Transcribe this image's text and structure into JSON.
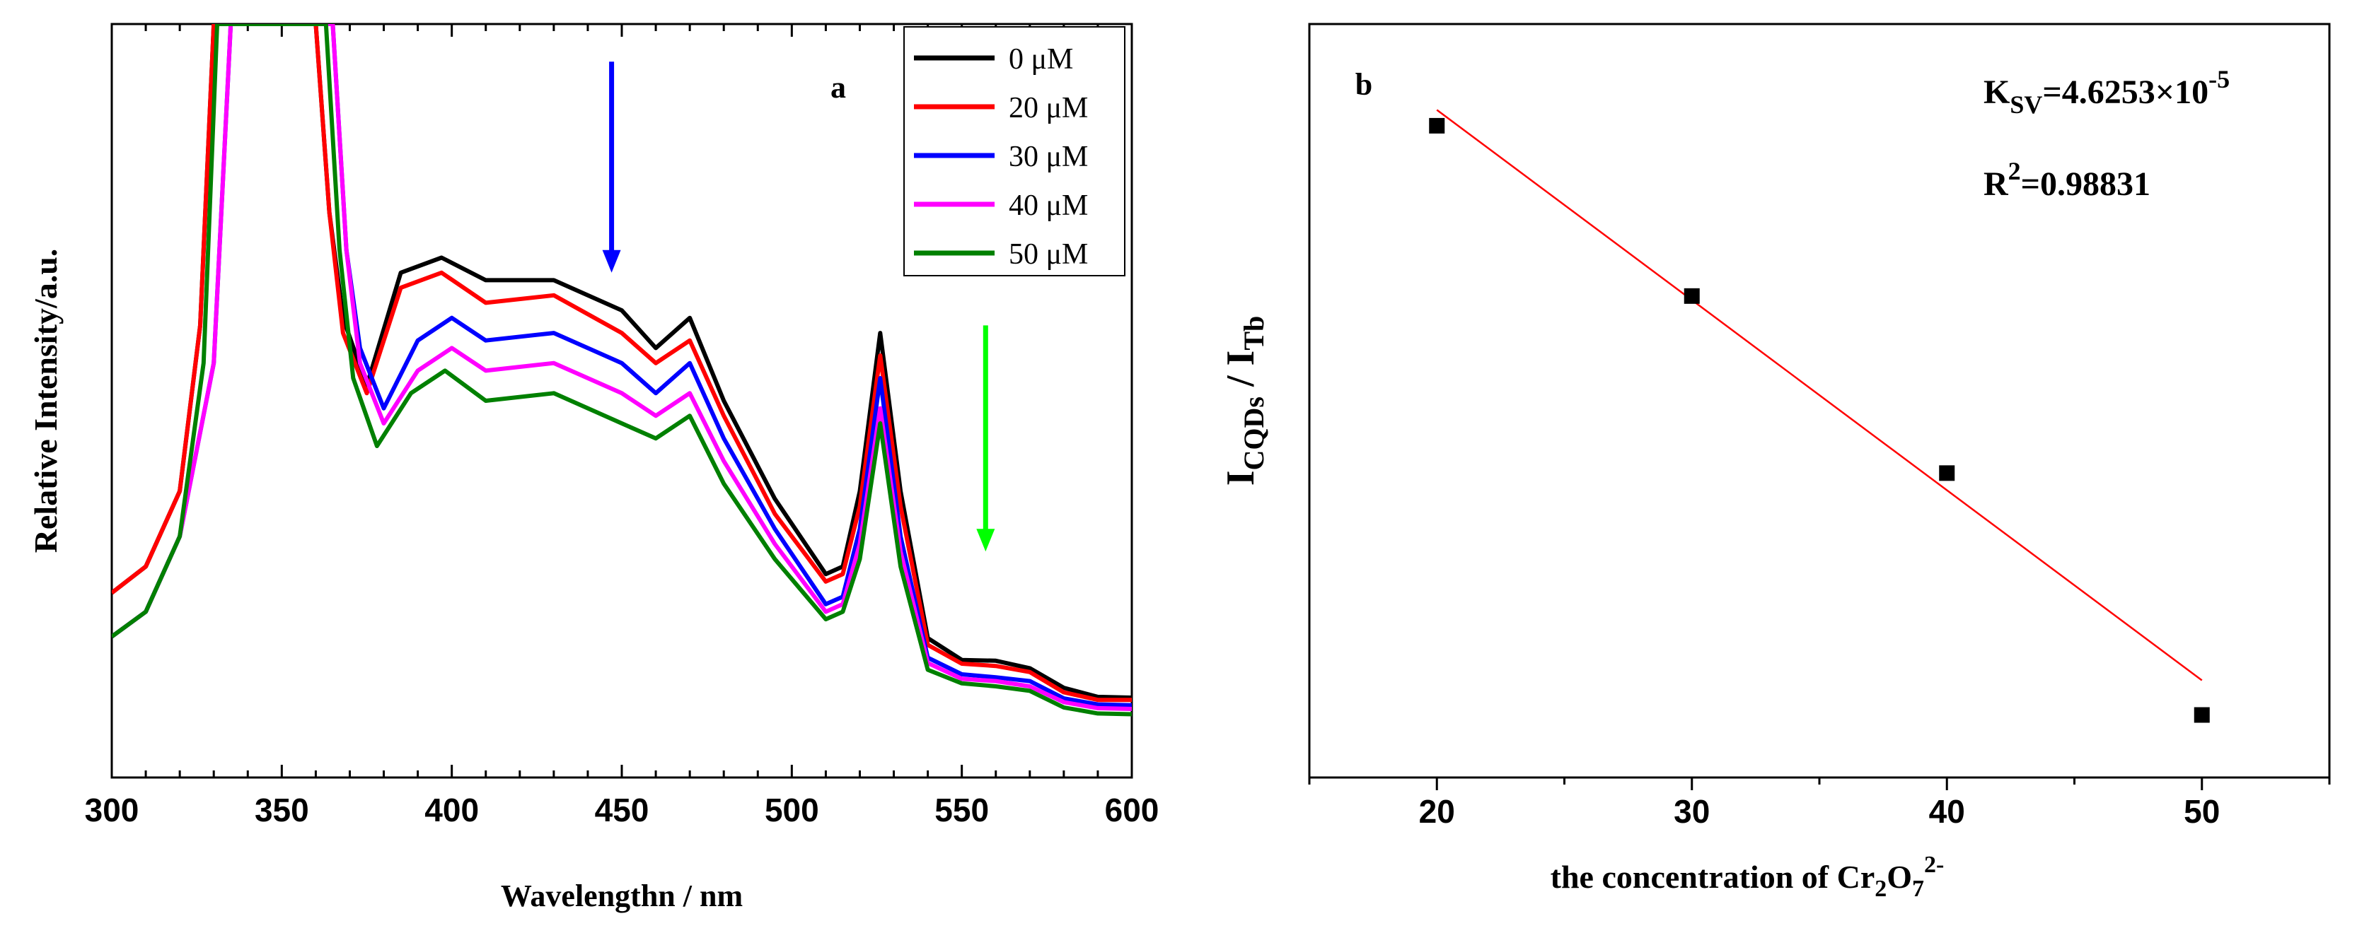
{
  "chart_data": [
    {
      "panel": "a",
      "type": "line",
      "xlabel": "Wavelengthn / nm",
      "ylabel": "Relative Intensity/a.u.",
      "xlim": [
        300,
        600
      ],
      "ylim": [
        0,
        100
      ],
      "xticks": [
        300,
        350,
        400,
        450,
        500,
        550,
        600
      ],
      "yticks_visible": false,
      "legend": {
        "placement": "top-right",
        "entries": [
          "0 μM",
          "20 μM",
          "30 μM",
          "40 μM",
          "50 μM"
        ]
      },
      "series": [
        {
          "name": "0 μM",
          "color": "#000000",
          "x": [
            300,
            310,
            320,
            326,
            330,
            360,
            364,
            368,
            375,
            385,
            397,
            410,
            430,
            450,
            460,
            470,
            480,
            495,
            510,
            515,
            520,
            526,
            532,
            540,
            550,
            560,
            570,
            580,
            590,
            600
          ],
          "y": [
            24.5,
            28,
            38,
            60,
            100,
            100,
            75,
            61,
            52,
            67,
            69,
            66,
            66,
            62,
            57,
            61,
            50,
            37,
            27,
            28,
            38,
            59,
            38,
            18.5,
            15.6,
            15.5,
            14.5,
            11.9,
            10.7,
            10.6
          ]
        },
        {
          "name": "20 μM",
          "color": "#ff0000",
          "x": [
            300,
            310,
            320,
            326,
            330,
            360,
            364,
            368,
            375,
            385,
            397,
            410,
            430,
            450,
            460,
            470,
            480,
            495,
            510,
            515,
            520,
            526,
            532,
            540,
            550,
            560,
            570,
            580,
            590,
            600
          ],
          "y": [
            24.5,
            28,
            38,
            60,
            100,
            100,
            75,
            59,
            51,
            65,
            67,
            63,
            64,
            59,
            55,
            58,
            48,
            35,
            26,
            27,
            36,
            56,
            36,
            17.6,
            15.1,
            14.8,
            14,
            11.3,
            10.3,
            10.3
          ]
        },
        {
          "name": "30 μM",
          "color": "#0000ff",
          "x": [
            300,
            310,
            320,
            330,
            335,
            365,
            369,
            373,
            380,
            390,
            400,
            410,
            430,
            450,
            460,
            470,
            480,
            495,
            510,
            515,
            520,
            526,
            532,
            540,
            550,
            560,
            570,
            580,
            590,
            600
          ],
          "y": [
            18.7,
            22,
            32,
            55,
            100,
            100,
            70,
            57,
            49,
            58,
            61,
            58,
            59,
            55,
            51,
            55,
            45,
            33,
            23,
            24,
            33,
            53,
            32,
            15.9,
            13.7,
            13.3,
            12.8,
            10.5,
            9.7,
            9.6
          ]
        },
        {
          "name": "40 μM",
          "color": "#ff00ff",
          "x": [
            300,
            310,
            320,
            330,
            335,
            365,
            369,
            373,
            380,
            390,
            400,
            410,
            430,
            450,
            460,
            470,
            480,
            495,
            510,
            515,
            520,
            526,
            532,
            540,
            550,
            560,
            570,
            580,
            590,
            600
          ],
          "y": [
            18.7,
            22,
            32,
            55,
            100,
            100,
            70,
            55,
            47,
            54,
            57,
            54,
            55,
            51,
            48,
            51,
            42,
            31,
            22,
            23,
            31,
            49,
            30,
            15.2,
            13.1,
            12.8,
            12.1,
            10,
            9.2,
            9.1
          ]
        },
        {
          "name": "50 μM",
          "color": "#008000",
          "x": [
            300,
            310,
            320,
            327,
            331,
            363,
            367,
            371,
            378,
            388,
            398,
            410,
            430,
            450,
            460,
            470,
            480,
            495,
            510,
            515,
            520,
            526,
            532,
            540,
            550,
            560,
            570,
            580,
            590,
            600
          ],
          "y": [
            18.7,
            22,
            32,
            55,
            100,
            100,
            70,
            53,
            44,
            51,
            54,
            50,
            51,
            47,
            45,
            48,
            39,
            29,
            21,
            22,
            29,
            47,
            28,
            14.3,
            12.5,
            12.1,
            11.5,
            9.3,
            8.5,
            8.4
          ]
        }
      ],
      "annotations": [
        {
          "label": "a"
        },
        {
          "type": "arrow",
          "direction": "down",
          "color": "#0000ff",
          "x": 447,
          "y_from": 95,
          "y_to": 67
        },
        {
          "type": "arrow",
          "direction": "down",
          "color": "#00ff00",
          "x": 557,
          "y_from": 60,
          "y_to": 30
        }
      ]
    },
    {
      "panel": "b",
      "type": "scatter",
      "xlabel_parts": {
        "main": "the concentration of Cr",
        "sub1": "2",
        "mid": "O",
        "sub2": "7",
        "sup": "2-"
      },
      "ylabel_parts": {
        "i1": "I",
        "sub1": "CQDs",
        "slash": " / ",
        "i2": "I",
        "sub2": "Tb"
      },
      "xlim": [
        15,
        55
      ],
      "ylim": [
        0,
        100
      ],
      "xticks": [
        20,
        30,
        40,
        50
      ],
      "yticks_visible": false,
      "x": [
        20,
        30,
        40,
        50
      ],
      "y": [
        86.5,
        63.9,
        40.4,
        8.3
      ],
      "fit": {
        "x": [
          20,
          50
        ],
        "y": [
          88.6,
          12.9
        ],
        "color": "#ff0000"
      },
      "ksv": {
        "k": "K",
        "sub": "SV",
        "eq": "=4.6253×10",
        "sup": "-5"
      },
      "r2": {
        "r": "R",
        "sup": "2",
        "eq": "=0.98831"
      },
      "annotations": [
        {
          "label": "b"
        }
      ]
    }
  ]
}
